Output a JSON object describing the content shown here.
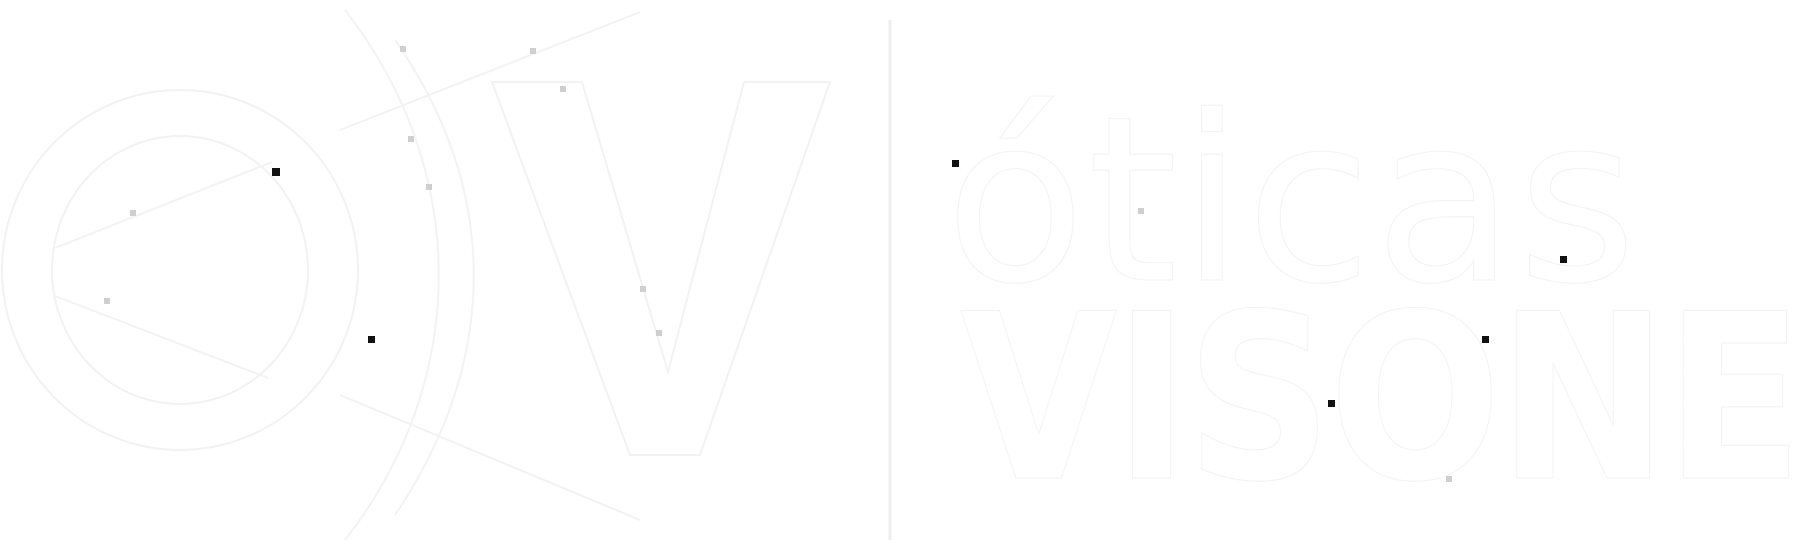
{
  "logo": {
    "brand_line_1": "óticas",
    "brand_line_2": "VISONE",
    "monogram": "OV",
    "colors": {
      "background": "#ffffff",
      "mark": "#ffffff",
      "outline": "#f2f2f2",
      "speck": "#cfcfcf"
    }
  }
}
